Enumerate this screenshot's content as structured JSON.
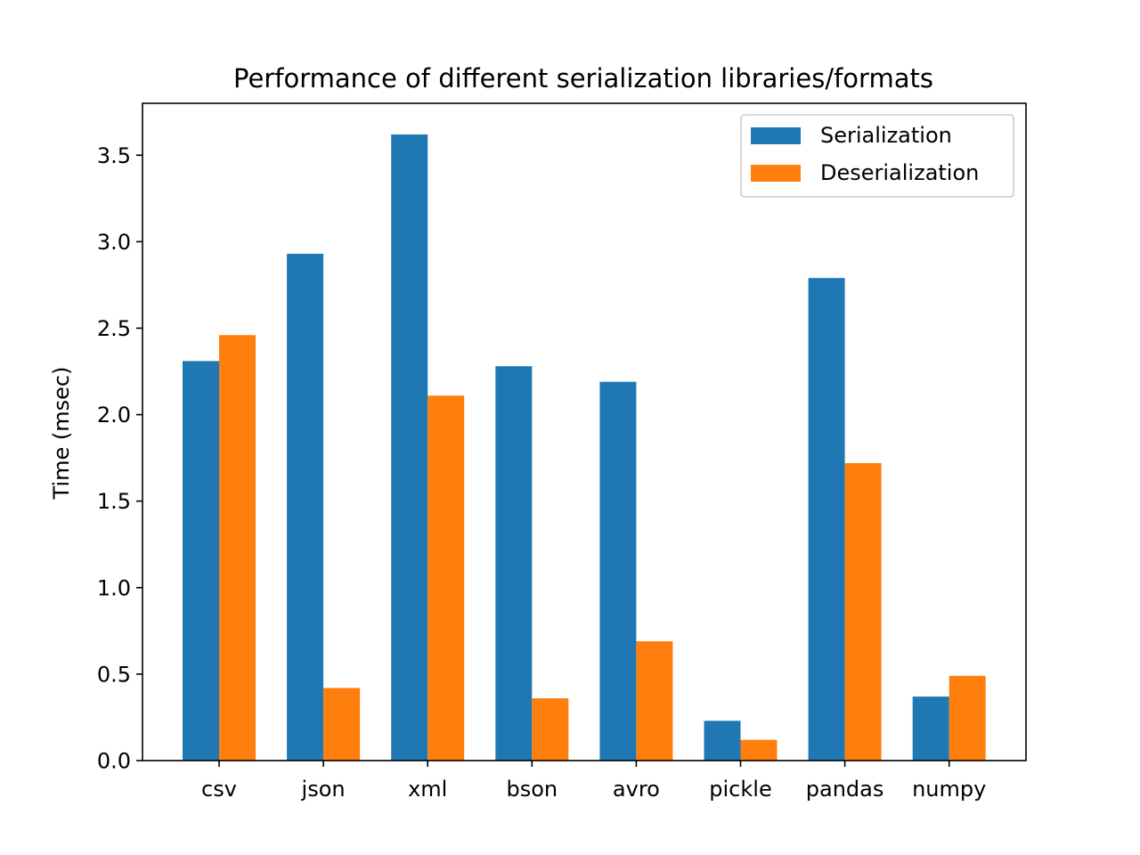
{
  "chart_data": {
    "type": "bar",
    "title": "Performance of different serialization libraries/formats",
    "xlabel": "",
    "ylabel": "Time (msec)",
    "categories": [
      "csv",
      "json",
      "xml",
      "bson",
      "avro",
      "pickle",
      "pandas",
      "numpy"
    ],
    "series": [
      {
        "name": "Serialization",
        "color": "#1f77b4",
        "values": [
          2.31,
          2.93,
          3.62,
          2.28,
          2.19,
          0.23,
          2.79,
          0.37
        ]
      },
      {
        "name": "Deserialization",
        "color": "#ff7f0e",
        "values": [
          2.46,
          0.42,
          2.11,
          0.36,
          0.69,
          0.12,
          1.72,
          0.49
        ]
      }
    ],
    "ylim": [
      0,
      3.8
    ],
    "yticks": [
      "0.0",
      "0.5",
      "1.0",
      "1.5",
      "2.0",
      "2.5",
      "3.0",
      "3.5"
    ],
    "grid": false,
    "legend": "top-right"
  }
}
